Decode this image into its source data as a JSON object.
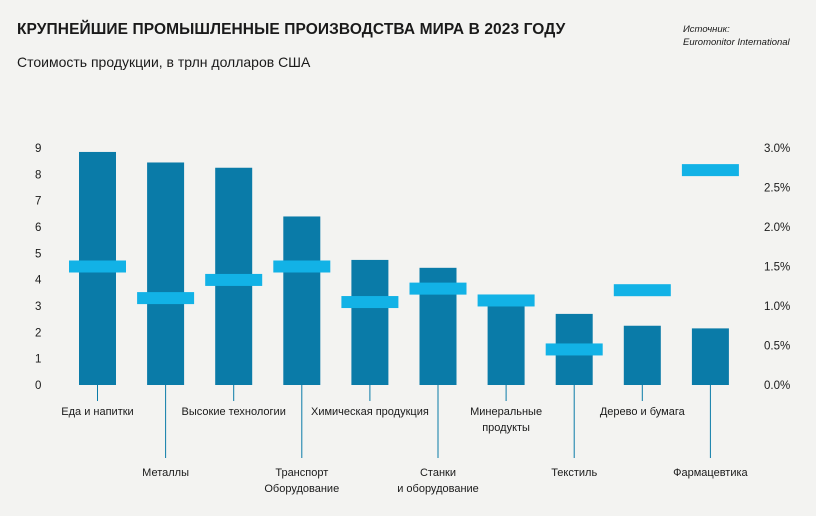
{
  "title": "КРУПНЕЙШИЕ ПРОМЫШЛЕННЫЕ ПРОИЗВОДСТВА МИРА В 2023 ГОДУ",
  "subtitle": "Стоимость продукции, в трлн долларов США",
  "source": [
    "Источник:",
    "Euromonitor International"
  ],
  "colors": {
    "bar": "#0a7ba8",
    "marker": "#12b2e6",
    "leader": "#0a7ba8",
    "background": "#f3f3f1"
  },
  "chart_data": {
    "type": "bar",
    "title": "КРУПНЕЙШИЕ ПРОМЫШЛЕННЫЕ ПРОИЗВОДСТВА МИРА В 2023 ГОДУ",
    "subtitle": "Стоимость продукции, в трлн долларов США",
    "categories": [
      [
        "Еда и напитки"
      ],
      [
        "Металлы"
      ],
      [
        "Высокие технологии"
      ],
      [
        "Транспорт",
        "Оборудование"
      ],
      [
        "Химическая продукция"
      ],
      [
        "Станки",
        "и оборудование"
      ],
      [
        "Минеральные",
        "продукты"
      ],
      [
        "Текстиль"
      ],
      [
        "Дерево и бумага"
      ],
      [
        "Фармацевтика"
      ]
    ],
    "label_rows": [
      "top",
      "bottom",
      "top",
      "bottom",
      "top",
      "bottom",
      "top",
      "bottom",
      "top",
      "bottom"
    ],
    "series": [
      {
        "axis": "left",
        "style": "bar",
        "values": [
          8.85,
          8.45,
          8.25,
          6.4,
          4.75,
          4.45,
          3.05,
          2.7,
          2.25,
          2.15
        ]
      },
      {
        "axis": "right",
        "style": "marker",
        "values": [
          1.5,
          1.1,
          1.33,
          1.5,
          1.05,
          1.22,
          1.07,
          0.45,
          1.2,
          2.72
        ]
      }
    ],
    "y_left": {
      "min": 0,
      "max": 9,
      "ticks": [
        "0",
        "1",
        "2",
        "3",
        "4",
        "5",
        "6",
        "7",
        "8",
        "9"
      ]
    },
    "y_right": {
      "min": 0,
      "max": 3,
      "ticks": [
        "0.0%",
        "0.5%",
        "1.0%",
        "1.5%",
        "2.0%",
        "2.5%",
        "3.0%"
      ]
    },
    "grid": false,
    "legend": "none"
  }
}
